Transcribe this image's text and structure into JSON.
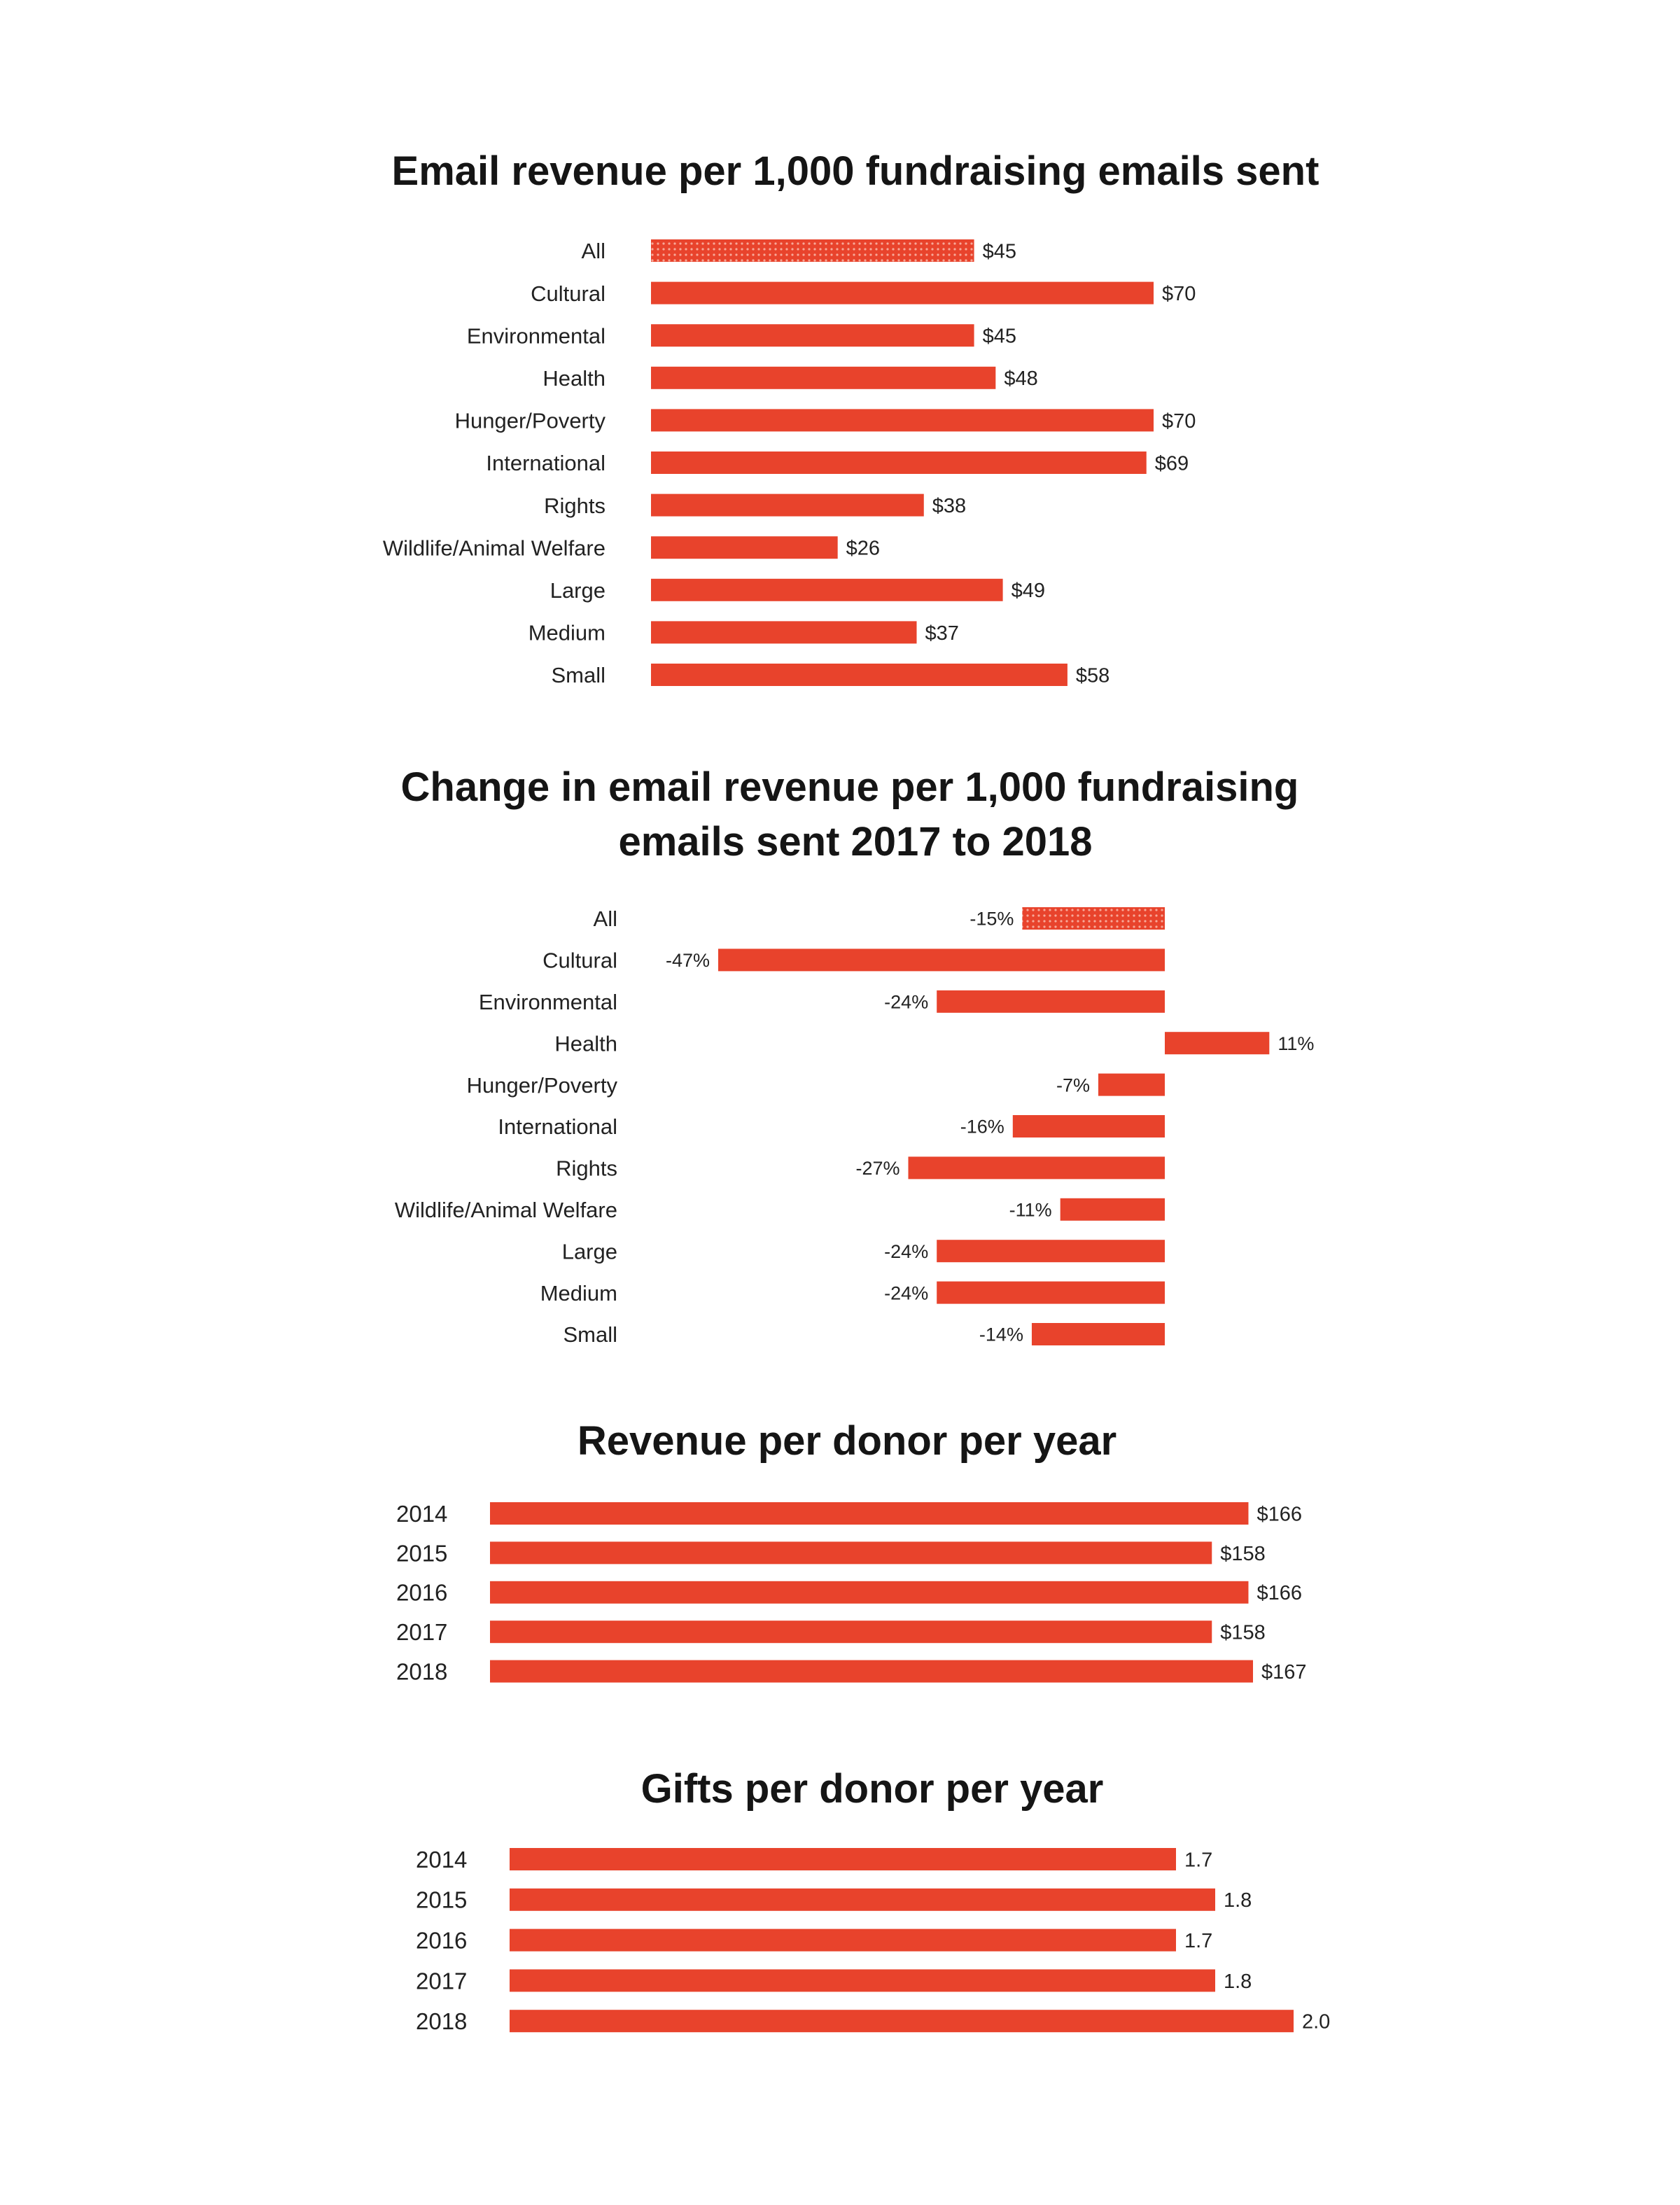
{
  "colors": {
    "bar": "#e8432c",
    "text": "#222222",
    "title": "#151515",
    "dot": "#f7a898"
  },
  "chart_data": [
    {
      "type": "bar",
      "orientation": "horizontal",
      "title": "Email revenue per 1,000 fundraising emails sent",
      "categories": [
        "All",
        "Cultural",
        "Environmental",
        "Health",
        "Hunger/Poverty",
        "International",
        "Rights",
        "Wildlife/Animal Welfare",
        "Large",
        "Medium",
        "Small"
      ],
      "values": [
        45,
        70,
        45,
        48,
        70,
        69,
        38,
        26,
        49,
        37,
        58
      ],
      "labels": [
        "$45",
        "$70",
        "$45",
        "$48",
        "$70",
        "$69",
        "$38",
        "$26",
        "$49",
        "$37",
        "$58"
      ],
      "highlight_index": 0,
      "xlim": [
        0,
        70
      ]
    },
    {
      "type": "bar",
      "orientation": "horizontal",
      "title": "Change in email revenue per 1,000 fundraising emails sent 2017 to 2018",
      "title_lines": [
        "Change in email revenue per 1,000 fundraising",
        "emails sent 2017 to 2018"
      ],
      "categories": [
        "All",
        "Cultural",
        "Environmental",
        "Health",
        "Hunger/Poverty",
        "International",
        "Rights",
        "Wildlife/Animal Welfare",
        "Large",
        "Medium",
        "Small"
      ],
      "values": [
        -15,
        -47,
        -24,
        11,
        -7,
        -16,
        -27,
        -11,
        -24,
        -24,
        -14
      ],
      "labels": [
        "-15%",
        "-47%",
        "-24%",
        "11%",
        "-7%",
        "-16%",
        "-27%",
        "-11%",
        "-24%",
        "-24%",
        "-14%"
      ],
      "highlight_index": 0,
      "xlim": [
        -47,
        11
      ]
    },
    {
      "type": "bar",
      "orientation": "horizontal",
      "title": "Revenue per donor per year",
      "categories": [
        "2014",
        "2015",
        "2016",
        "2017",
        "2018"
      ],
      "values": [
        166,
        158,
        166,
        158,
        167
      ],
      "labels": [
        "$166",
        "$158",
        "$166",
        "$158",
        "$167"
      ],
      "xlim": [
        0,
        167
      ]
    },
    {
      "type": "bar",
      "orientation": "horizontal",
      "title": "Gifts per donor per year",
      "categories": [
        "2014",
        "2015",
        "2016",
        "2017",
        "2018"
      ],
      "values": [
        1.7,
        1.8,
        1.7,
        1.8,
        2.0
      ],
      "labels": [
        "1.7",
        "1.8",
        "1.7",
        "1.8",
        "2.0"
      ],
      "xlim": [
        0,
        2.0
      ]
    }
  ]
}
